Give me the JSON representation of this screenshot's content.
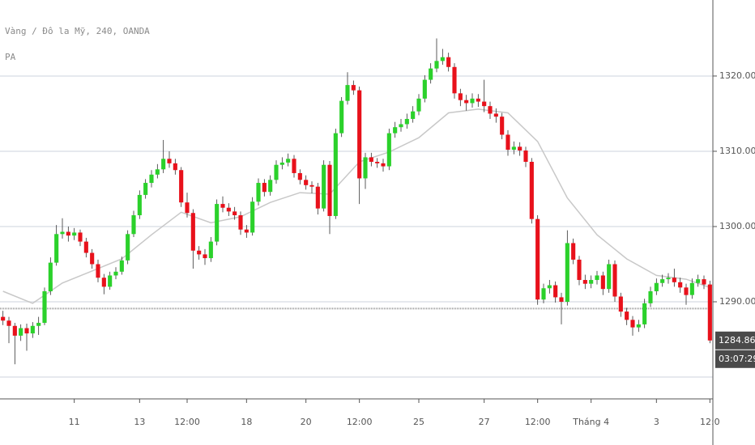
{
  "chart_data": {
    "type": "candlestick",
    "title": "Vàng / Đô la Mỹ, 240, OANDA",
    "subtitle": "PA",
    "up_color": "#2bd12b",
    "down_color": "#e8111b",
    "ma_color": "#c8c8c8",
    "ylim": [
      1277.1,
      1330.1
    ],
    "yticks": [
      {
        "value": 1290,
        "label": "1290.000"
      },
      {
        "value": 1300,
        "label": "1300.000"
      },
      {
        "value": 1310,
        "label": "1310.000"
      },
      {
        "value": 1320,
        "label": "1320.000"
      }
    ],
    "grid_extra": [
      1280
    ],
    "grid": true,
    "xticks": [
      {
        "value": 12,
        "label": "11"
      },
      {
        "value": 23,
        "label": "13"
      },
      {
        "value": 31,
        "label": "12:00"
      },
      {
        "value": 41,
        "label": "18"
      },
      {
        "value": 51,
        "label": "20"
      },
      {
        "value": 60,
        "label": "12:00"
      },
      {
        "value": 70,
        "label": "25"
      },
      {
        "value": 81,
        "label": "27"
      },
      {
        "value": 90,
        "label": "12:00"
      },
      {
        "value": 99,
        "label": "Tháng 4"
      },
      {
        "value": 110,
        "label": "3"
      },
      {
        "value": 119,
        "label": "12:0"
      }
    ],
    "price_line": 1289.1,
    "last_price": 1284.863,
    "countdown": "03:07:29",
    "candles": [
      [
        1288.0,
        1288.8,
        1286.9,
        1287.5
      ],
      [
        1287.5,
        1288.0,
        1284.5,
        1286.8
      ],
      [
        1286.8,
        1287.2,
        1281.7,
        1285.5
      ],
      [
        1285.5,
        1287.0,
        1284.8,
        1286.5
      ],
      [
        1286.5,
        1287.1,
        1283.5,
        1285.8
      ],
      [
        1285.8,
        1287.3,
        1285.2,
        1286.8
      ],
      [
        1286.8,
        1288.0,
        1285.6,
        1287.2
      ],
      [
        1287.2,
        1291.9,
        1286.9,
        1291.4
      ],
      [
        1291.4,
        1295.9,
        1290.9,
        1295.2
      ],
      [
        1295.2,
        1300.2,
        1294.8,
        1299.0
      ],
      [
        1299.0,
        1301.1,
        1298.4,
        1299.3
      ],
      [
        1299.3,
        1300.0,
        1298.0,
        1298.8
      ],
      [
        1298.8,
        1299.8,
        1298.2,
        1299.2
      ],
      [
        1299.2,
        1299.6,
        1297.4,
        1298.0
      ],
      [
        1298.0,
        1298.5,
        1295.9,
        1296.5
      ],
      [
        1296.5,
        1297.0,
        1294.4,
        1295.0
      ],
      [
        1295.0,
        1295.6,
        1292.6,
        1293.2
      ],
      [
        1293.2,
        1293.7,
        1291.0,
        1292.0
      ],
      [
        1292.0,
        1294.0,
        1291.6,
        1293.5
      ],
      [
        1293.5,
        1294.6,
        1293.0,
        1294.0
      ],
      [
        1294.0,
        1296.0,
        1293.6,
        1295.5
      ],
      [
        1295.5,
        1299.5,
        1295.0,
        1299.0
      ],
      [
        1299.0,
        1302.1,
        1298.6,
        1301.5
      ],
      [
        1301.5,
        1304.8,
        1301.0,
        1304.2
      ],
      [
        1304.2,
        1306.3,
        1303.7,
        1305.8
      ],
      [
        1305.8,
        1307.5,
        1305.2,
        1306.9
      ],
      [
        1306.9,
        1308.3,
        1306.4,
        1307.6
      ],
      [
        1307.6,
        1311.5,
        1307.1,
        1309.0
      ],
      [
        1309.0,
        1310.0,
        1307.8,
        1308.4
      ],
      [
        1308.4,
        1309.0,
        1306.9,
        1307.5
      ],
      [
        1307.5,
        1307.9,
        1302.6,
        1303.2
      ],
      [
        1303.2,
        1304.5,
        1301.2,
        1301.8
      ],
      [
        1301.8,
        1302.3,
        1294.4,
        1296.8
      ],
      [
        1296.8,
        1297.4,
        1295.6,
        1296.3
      ],
      [
        1296.3,
        1297.0,
        1294.9,
        1295.8
      ],
      [
        1295.8,
        1298.6,
        1295.3,
        1298.0
      ],
      [
        1298.0,
        1303.6,
        1297.5,
        1303.0
      ],
      [
        1303.0,
        1304.0,
        1301.9,
        1302.5
      ],
      [
        1302.5,
        1303.1,
        1301.4,
        1302.0
      ],
      [
        1302.0,
        1302.6,
        1300.9,
        1301.5
      ],
      [
        1301.5,
        1302.0,
        1298.9,
        1299.6
      ],
      [
        1299.6,
        1300.2,
        1298.5,
        1299.2
      ],
      [
        1299.2,
        1303.9,
        1298.8,
        1303.3
      ],
      [
        1303.3,
        1306.4,
        1302.8,
        1305.8
      ],
      [
        1305.8,
        1306.3,
        1304.0,
        1304.6
      ],
      [
        1304.6,
        1306.8,
        1304.1,
        1306.2
      ],
      [
        1306.2,
        1308.8,
        1305.7,
        1308.2
      ],
      [
        1308.2,
        1309.2,
        1307.6,
        1308.5
      ],
      [
        1308.5,
        1309.7,
        1308.0,
        1309.0
      ],
      [
        1309.0,
        1309.5,
        1306.5,
        1307.1
      ],
      [
        1307.1,
        1307.6,
        1305.6,
        1306.2
      ],
      [
        1306.2,
        1306.8,
        1304.9,
        1305.5
      ],
      [
        1305.5,
        1306.0,
        1304.4,
        1305.3
      ],
      [
        1305.3,
        1305.8,
        1301.6,
        1302.4
      ],
      [
        1302.4,
        1308.8,
        1302.0,
        1308.2
      ],
      [
        1308.2,
        1308.7,
        1299.0,
        1301.4
      ],
      [
        1301.4,
        1313.0,
        1301.0,
        1312.4
      ],
      [
        1312.4,
        1317.2,
        1311.9,
        1316.7
      ],
      [
        1316.7,
        1320.5,
        1316.2,
        1318.8
      ],
      [
        1318.8,
        1319.4,
        1317.5,
        1318.1
      ],
      [
        1318.1,
        1318.6,
        1303.0,
        1306.4
      ],
      [
        1306.4,
        1309.8,
        1305.0,
        1309.2
      ],
      [
        1309.2,
        1309.8,
        1308.0,
        1308.6
      ],
      [
        1308.6,
        1309.1,
        1307.8,
        1308.4
      ],
      [
        1308.4,
        1309.0,
        1307.3,
        1308.0
      ],
      [
        1308.0,
        1313.0,
        1307.5,
        1312.4
      ],
      [
        1312.4,
        1313.9,
        1311.8,
        1313.2
      ],
      [
        1313.2,
        1314.3,
        1312.6,
        1313.6
      ],
      [
        1313.6,
        1315.0,
        1313.0,
        1314.3
      ],
      [
        1314.3,
        1316.0,
        1313.8,
        1315.3
      ],
      [
        1315.3,
        1317.6,
        1314.8,
        1317.0
      ],
      [
        1317.0,
        1320.1,
        1316.5,
        1319.5
      ],
      [
        1319.5,
        1321.7,
        1319.0,
        1321.0
      ],
      [
        1321.0,
        1325.0,
        1320.5,
        1322.0
      ],
      [
        1322.0,
        1323.6,
        1321.5,
        1322.5
      ],
      [
        1322.5,
        1323.1,
        1320.6,
        1321.2
      ],
      [
        1321.2,
        1321.7,
        1317.0,
        1317.7
      ],
      [
        1317.7,
        1318.3,
        1316.0,
        1316.8
      ],
      [
        1316.8,
        1317.5,
        1315.4,
        1316.4
      ],
      [
        1316.4,
        1317.7,
        1315.8,
        1317.0
      ],
      [
        1317.0,
        1317.6,
        1315.9,
        1316.6
      ],
      [
        1316.6,
        1319.5,
        1315.2,
        1316.0
      ],
      [
        1316.0,
        1316.6,
        1314.3,
        1315.0
      ],
      [
        1315.0,
        1315.7,
        1313.8,
        1314.6
      ],
      [
        1314.6,
        1315.1,
        1311.6,
        1312.2
      ],
      [
        1312.2,
        1312.8,
        1309.4,
        1310.2
      ],
      [
        1310.2,
        1311.3,
        1309.6,
        1310.6
      ],
      [
        1310.6,
        1311.2,
        1309.4,
        1310.1
      ],
      [
        1310.1,
        1310.6,
        1307.9,
        1308.6
      ],
      [
        1308.6,
        1309.1,
        1300.4,
        1301.0
      ],
      [
        1301.0,
        1301.5,
        1289.6,
        1290.3
      ],
      [
        1290.3,
        1292.4,
        1289.8,
        1291.8
      ],
      [
        1291.8,
        1292.9,
        1291.1,
        1292.2
      ],
      [
        1292.2,
        1292.7,
        1289.9,
        1290.6
      ],
      [
        1290.6,
        1291.2,
        1287.0,
        1290.0
      ],
      [
        1290.0,
        1299.5,
        1289.5,
        1297.8
      ],
      [
        1297.8,
        1298.4,
        1295.0,
        1295.6
      ],
      [
        1295.6,
        1296.1,
        1292.2,
        1292.9
      ],
      [
        1292.9,
        1293.6,
        1291.7,
        1292.4
      ],
      [
        1292.4,
        1293.5,
        1291.8,
        1292.9
      ],
      [
        1292.9,
        1294.1,
        1292.3,
        1293.5
      ],
      [
        1293.5,
        1294.0,
        1290.9,
        1291.7
      ],
      [
        1291.7,
        1295.6,
        1291.2,
        1295.0
      ],
      [
        1295.0,
        1295.5,
        1290.0,
        1290.7
      ],
      [
        1290.7,
        1291.2,
        1288.0,
        1288.7
      ],
      [
        1288.7,
        1289.2,
        1286.9,
        1287.6
      ],
      [
        1287.6,
        1288.1,
        1285.5,
        1286.6
      ],
      [
        1286.6,
        1287.6,
        1286.0,
        1287.0
      ],
      [
        1287.0,
        1290.4,
        1286.5,
        1289.8
      ],
      [
        1289.8,
        1292.0,
        1289.3,
        1291.4
      ],
      [
        1291.4,
        1293.1,
        1290.9,
        1292.5
      ],
      [
        1292.5,
        1293.6,
        1292.0,
        1293.0
      ],
      [
        1293.0,
        1293.8,
        1292.4,
        1293.2
      ],
      [
        1293.2,
        1294.4,
        1292.0,
        1292.6
      ],
      [
        1292.6,
        1293.2,
        1291.2,
        1291.9
      ],
      [
        1291.9,
        1292.4,
        1289.6,
        1290.9
      ],
      [
        1290.9,
        1293.1,
        1290.4,
        1292.5
      ],
      [
        1292.5,
        1293.6,
        1292.0,
        1293.0
      ],
      [
        1293.0,
        1293.5,
        1291.7,
        1292.3
      ],
      [
        1292.3,
        1292.8,
        1284.5,
        1284.863
      ]
    ],
    "ma": {
      "x": [
        0,
        5,
        10,
        15,
        20,
        25,
        30,
        35,
        40,
        45,
        50,
        55,
        60,
        65,
        70,
        75,
        80,
        85,
        90,
        95,
        100,
        105,
        110,
        115,
        119
      ],
      "values": [
        1291.4,
        1289.8,
        1292.5,
        1294.1,
        1295.7,
        1298.9,
        1301.9,
        1300.5,
        1301.3,
        1303.2,
        1304.5,
        1304.3,
        1308.6,
        1309.9,
        1311.8,
        1315.1,
        1315.6,
        1315.1,
        1311.3,
        1303.8,
        1298.9,
        1295.7,
        1293.5,
        1293.0,
        1291.9
      ]
    }
  }
}
